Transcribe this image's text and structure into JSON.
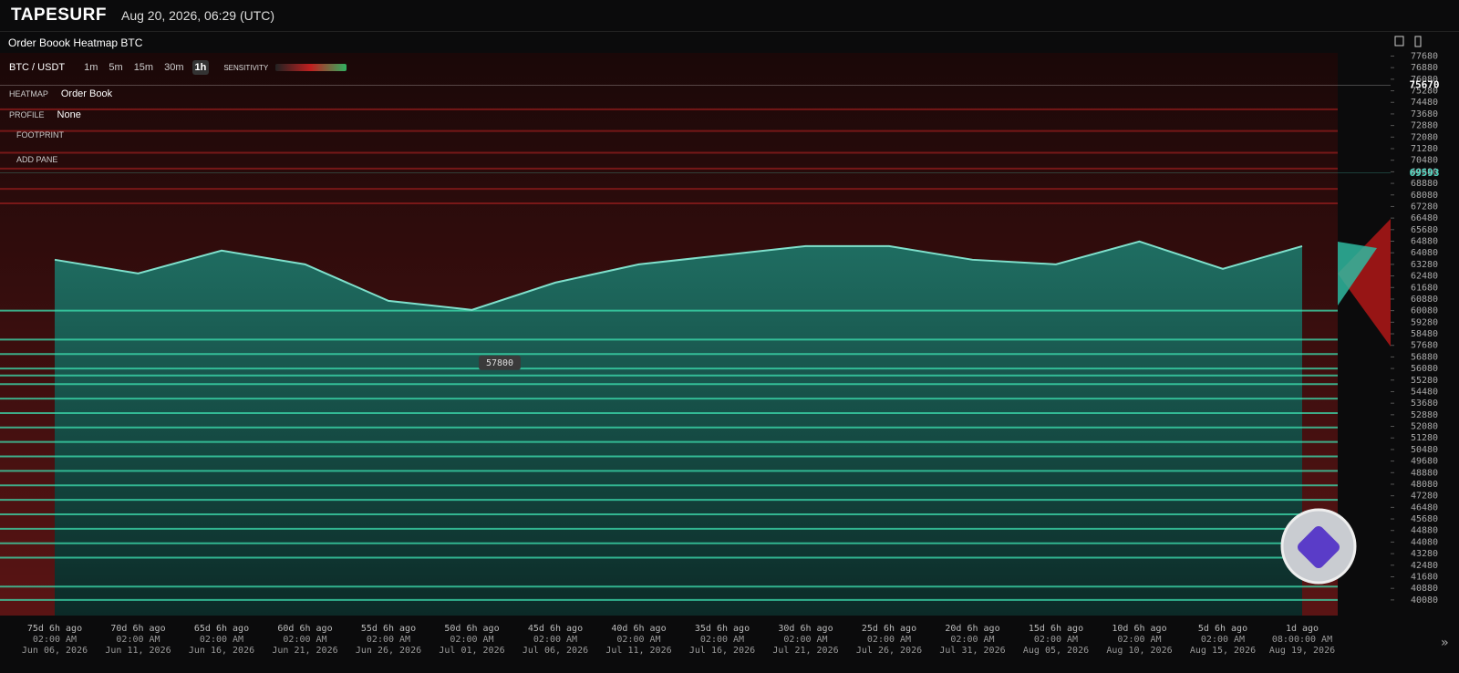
{
  "header": {
    "logo": "TAPESURF",
    "timestamp": "Aug 20, 2026, 06:29 (UTC)"
  },
  "panel": {
    "title": "Order Boook Heatmap BTC"
  },
  "toolbar": {
    "symbol": "BTC / USDT",
    "intervals": [
      {
        "label": "1m",
        "active": false
      },
      {
        "label": "5m",
        "active": false
      },
      {
        "label": "15m",
        "active": false
      },
      {
        "label": "30m",
        "active": false
      },
      {
        "label": "1h",
        "active": true
      }
    ],
    "sensitivity": "SENSITIVITY"
  },
  "layers": {
    "heatmap_label": "HEATMAP",
    "heatmap_value": "Order Book",
    "profile_label": "PROFILE",
    "profile_value": "None",
    "footprint_label": "FOOTPRINT",
    "add_pane": "ADD PANE"
  },
  "footer": {
    "expand": "»"
  },
  "chart_data": {
    "type": "line",
    "categories": [
      "75d 6h ago",
      "70d 6h ago",
      "65d 6h ago",
      "60d 6h ago",
      "55d 6h ago",
      "50d 6h ago",
      "45d 6h ago",
      "40d 6h ago",
      "35d 6h ago",
      "30d 6h ago",
      "25d 6h ago",
      "20d 6h ago",
      "15d 6h ago",
      "10d 6h ago",
      "5d 6h ago",
      "1d ago"
    ],
    "times": [
      "02:00 AM",
      "02:00 AM",
      "02:00 AM",
      "02:00 AM",
      "02:00 AM",
      "02:00 AM",
      "02:00 AM",
      "02:00 AM",
      "02:00 AM",
      "02:00 AM",
      "02:00 AM",
      "02:00 AM",
      "02:00 AM",
      "02:00 AM",
      "02:00 AM",
      "08:00:00 AM"
    ],
    "dates": [
      "Jun 06, 2026",
      "Jun 11, 2026",
      "Jun 16, 2026",
      "Jun 21, 2026",
      "Jun 26, 2026",
      "Jul 01, 2026",
      "Jul 06, 2026",
      "Jul 11, 2026",
      "Jul 16, 2026",
      "Jul 21, 2026",
      "Jul 26, 2026",
      "Jul 31, 2026",
      "Aug 05, 2026",
      "Aug 10, 2026",
      "Aug 15, 2026",
      "Aug 19, 2026"
    ],
    "values": [
      63600,
      62650,
      64230,
      63280,
      60760,
      60130,
      62020,
      63280,
      63910,
      64540,
      64540,
      63600,
      63280,
      64860,
      62970,
      64540
    ],
    "color": "#7fe0cc",
    "ylim": [
      39000,
      77900
    ],
    "yticks": [
      40080,
      40880,
      41680,
      42480,
      43280,
      44080,
      44880,
      45680,
      46480,
      47280,
      48080,
      48880,
      49680,
      50480,
      51280,
      52080,
      52880,
      53680,
      54480,
      55280,
      56080,
      56880,
      57680,
      58480,
      59280,
      60080,
      60880,
      61680,
      62480,
      63280,
      64080,
      64880,
      65680,
      66480,
      67280,
      68080,
      68880,
      69680,
      70480,
      71280,
      72080,
      72880,
      73680,
      74480,
      75280,
      76080,
      76880,
      77680
    ],
    "markers": [
      {
        "value": 75670,
        "color": "#ffffff"
      },
      {
        "value": 69593,
        "color": "#4fd6c0"
      },
      {
        "value": 57800,
        "color": "#dddddd"
      }
    ],
    "bid_levels": [
      60080,
      58080,
      57080,
      56080,
      55600,
      55000,
      54000,
      53000,
      52000,
      51000,
      50000,
      49000,
      48000,
      47000,
      46000,
      45000,
      44000,
      43000,
      41000,
      40080
    ],
    "ask_levels": [
      74000,
      72500,
      71000,
      69900,
      68500,
      67500
    ]
  }
}
